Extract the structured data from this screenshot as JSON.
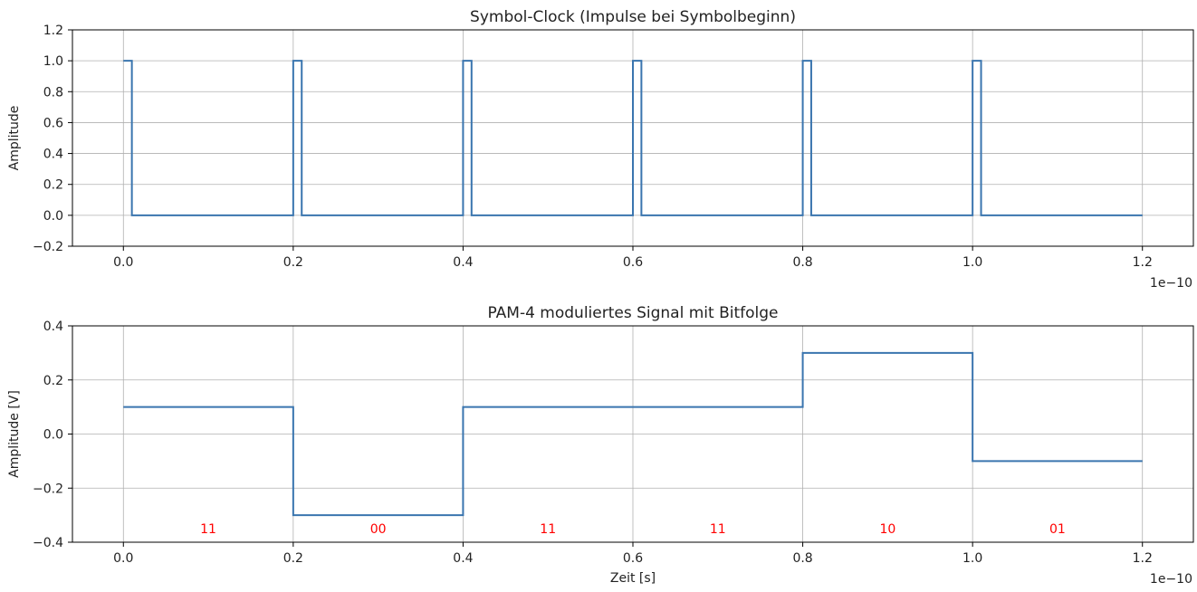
{
  "chart_data": [
    {
      "type": "line",
      "title": "Symbol-Clock (Impulse bei Symbolbeginn)",
      "xlabel": "",
      "ylabel": "Amplitude",
      "x_offset_label": "1e−10",
      "xlim": [
        -0.06,
        1.26
      ],
      "ylim": [
        -0.2,
        1.2
      ],
      "xticks": [
        "0.0",
        "0.2",
        "0.4",
        "0.6",
        "0.8",
        "1.0",
        "1.2"
      ],
      "yticks": [
        "−0.2",
        "0.0",
        "0.2",
        "0.4",
        "0.6",
        "0.8",
        "1.0",
        "1.2"
      ],
      "grid": true,
      "color": "#3a75af",
      "series": [
        {
          "x": [
            0.0,
            0.01,
            0.01,
            0.2,
            0.2,
            0.21,
            0.21,
            0.4,
            0.4,
            0.41,
            0.41,
            0.6,
            0.6,
            0.61,
            0.61,
            0.8,
            0.8,
            0.81,
            0.81,
            1.0,
            1.0,
            1.01,
            1.01,
            1.2
          ],
          "y": [
            1,
            1,
            0,
            0,
            1,
            1,
            0,
            0,
            1,
            1,
            0,
            0,
            1,
            1,
            0,
            0,
            1,
            1,
            0,
            0,
            1,
            1,
            0,
            0
          ]
        }
      ]
    },
    {
      "type": "line",
      "title": "PAM-4 moduliertes Signal mit Bitfolge",
      "xlabel": "Zeit [s]",
      "ylabel": "Amplitude [V]",
      "x_offset_label": "1e−10",
      "xlim": [
        -0.06,
        1.26
      ],
      "ylim": [
        -0.4,
        0.4
      ],
      "xticks": [
        "0.0",
        "0.2",
        "0.4",
        "0.6",
        "0.8",
        "1.0",
        "1.2"
      ],
      "yticks": [
        "−0.4",
        "−0.2",
        "0.0",
        "0.2",
        "0.4"
      ],
      "grid": true,
      "color": "#3a75af",
      "series": [
        {
          "x": [
            0.0,
            0.2,
            0.2,
            0.4,
            0.4,
            0.8,
            0.8,
            1.0,
            1.0,
            1.2
          ],
          "y": [
            0.1,
            0.1,
            -0.3,
            -0.3,
            0.1,
            0.1,
            0.3,
            0.3,
            -0.1,
            -0.1
          ]
        }
      ],
      "annotations": [
        {
          "text": "11",
          "x": 0.1,
          "y": -0.35
        },
        {
          "text": "00",
          "x": 0.3,
          "y": -0.35
        },
        {
          "text": "11",
          "x": 0.5,
          "y": -0.35
        },
        {
          "text": "11",
          "x": 0.7,
          "y": -0.35
        },
        {
          "text": "10",
          "x": 0.9,
          "y": -0.35
        },
        {
          "text": "01",
          "x": 1.1,
          "y": -0.35
        }
      ],
      "annotation_color": "#ff0000"
    }
  ]
}
